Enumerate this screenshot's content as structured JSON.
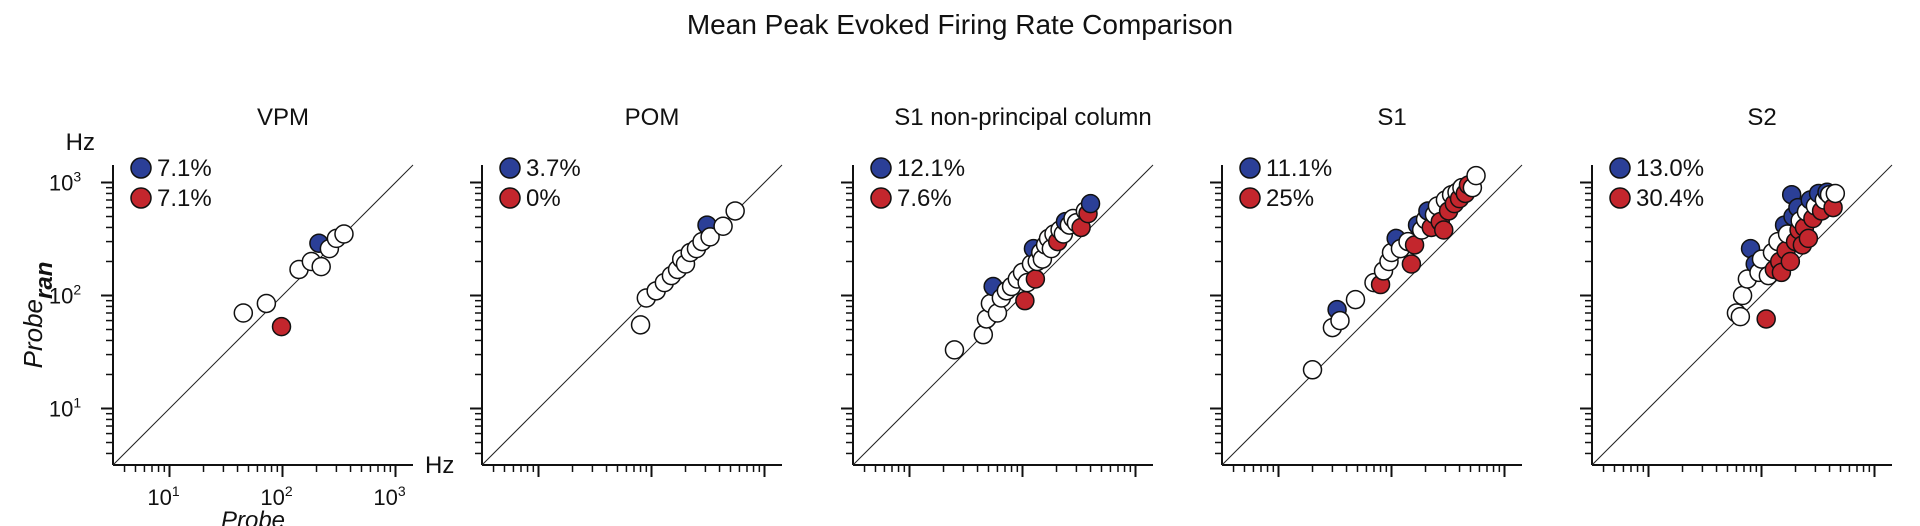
{
  "figure_title": "Mean Peak Evoked Firing Rate Comparison",
  "colors": {
    "blue": "#2b3f97",
    "red": "#c3262d",
    "white": "#ffffff",
    "stroke": "#111111"
  },
  "chart_data": [
    {
      "type": "scatter",
      "title": "VPM",
      "scale": "log",
      "xlabel": "Probe",
      "ylabel_main": "Probe",
      "ylabel_sub": "ran",
      "unit": "Hz",
      "xticks": [
        "10",
        "10",
        "10"
      ],
      "xtick_exp": [
        "1",
        "2",
        "3"
      ],
      "yticks": [
        "10",
        "10",
        "10"
      ],
      "ytick_exp": [
        "1",
        "2",
        "3"
      ],
      "legend": [
        {
          "color": "blue",
          "label": "7.1%"
        },
        {
          "color": "red",
          "label": "7.1%"
        }
      ],
      "points": [
        {
          "x": 45,
          "y": 70,
          "c": "white"
        },
        {
          "x": 72,
          "y": 85,
          "c": "white"
        },
        {
          "x": 98,
          "y": 53,
          "c": "red"
        },
        {
          "x": 140,
          "y": 170,
          "c": "white"
        },
        {
          "x": 180,
          "y": 200,
          "c": "white"
        },
        {
          "x": 210,
          "y": 290,
          "c": "blue"
        },
        {
          "x": 220,
          "y": 180,
          "c": "white"
        },
        {
          "x": 260,
          "y": 260,
          "c": "white"
        },
        {
          "x": 300,
          "y": 320,
          "c": "white"
        },
        {
          "x": 350,
          "y": 350,
          "c": "white"
        }
      ]
    },
    {
      "type": "scatter",
      "title": "POM",
      "scale": "log",
      "legend": [
        {
          "color": "blue",
          "label": "3.7%"
        },
        {
          "color": "red",
          "label": "0%"
        }
      ],
      "points": [
        {
          "x": 80,
          "y": 55,
          "c": "white"
        },
        {
          "x": 90,
          "y": 95,
          "c": "white"
        },
        {
          "x": 110,
          "y": 110,
          "c": "white"
        },
        {
          "x": 130,
          "y": 130,
          "c": "white"
        },
        {
          "x": 150,
          "y": 150,
          "c": "white"
        },
        {
          "x": 170,
          "y": 170,
          "c": "white"
        },
        {
          "x": 185,
          "y": 210,
          "c": "white"
        },
        {
          "x": 200,
          "y": 190,
          "c": "white"
        },
        {
          "x": 220,
          "y": 240,
          "c": "white"
        },
        {
          "x": 250,
          "y": 260,
          "c": "white"
        },
        {
          "x": 280,
          "y": 300,
          "c": "white"
        },
        {
          "x": 310,
          "y": 420,
          "c": "blue"
        },
        {
          "x": 330,
          "y": 330,
          "c": "white"
        },
        {
          "x": 430,
          "y": 410,
          "c": "white"
        },
        {
          "x": 550,
          "y": 560,
          "c": "white"
        }
      ]
    },
    {
      "type": "scatter",
      "title": "S1 non-principal column",
      "scale": "log",
      "legend": [
        {
          "color": "blue",
          "label": "12.1%"
        },
        {
          "color": "red",
          "label": "7.6%"
        }
      ],
      "points": [
        {
          "x": 25,
          "y": 33,
          "c": "white"
        },
        {
          "x": 45,
          "y": 45,
          "c": "white"
        },
        {
          "x": 48,
          "y": 62,
          "c": "white"
        },
        {
          "x": 52,
          "y": 85,
          "c": "white"
        },
        {
          "x": 55,
          "y": 120,
          "c": "blue"
        },
        {
          "x": 60,
          "y": 70,
          "c": "white"
        },
        {
          "x": 65,
          "y": 95,
          "c": "white"
        },
        {
          "x": 72,
          "y": 110,
          "c": "white"
        },
        {
          "x": 80,
          "y": 120,
          "c": "white"
        },
        {
          "x": 90,
          "y": 140,
          "c": "white"
        },
        {
          "x": 100,
          "y": 160,
          "c": "white"
        },
        {
          "x": 105,
          "y": 90,
          "c": "red"
        },
        {
          "x": 110,
          "y": 130,
          "c": "white"
        },
        {
          "x": 120,
          "y": 190,
          "c": "white"
        },
        {
          "x": 125,
          "y": 260,
          "c": "blue"
        },
        {
          "x": 130,
          "y": 140,
          "c": "red"
        },
        {
          "x": 135,
          "y": 200,
          "c": "white"
        },
        {
          "x": 145,
          "y": 240,
          "c": "white"
        },
        {
          "x": 150,
          "y": 210,
          "c": "white"
        },
        {
          "x": 160,
          "y": 280,
          "c": "white"
        },
        {
          "x": 170,
          "y": 320,
          "c": "white"
        },
        {
          "x": 180,
          "y": 260,
          "c": "white"
        },
        {
          "x": 190,
          "y": 350,
          "c": "white"
        },
        {
          "x": 205,
          "y": 300,
          "c": "red"
        },
        {
          "x": 215,
          "y": 380,
          "c": "white"
        },
        {
          "x": 230,
          "y": 350,
          "c": "white"
        },
        {
          "x": 240,
          "y": 450,
          "c": "blue"
        },
        {
          "x": 260,
          "y": 420,
          "c": "white"
        },
        {
          "x": 280,
          "y": 480,
          "c": "white"
        },
        {
          "x": 300,
          "y": 440,
          "c": "white"
        },
        {
          "x": 330,
          "y": 400,
          "c": "red"
        },
        {
          "x": 360,
          "y": 560,
          "c": "white"
        },
        {
          "x": 380,
          "y": 530,
          "c": "red"
        },
        {
          "x": 400,
          "y": 650,
          "c": "blue"
        }
      ]
    },
    {
      "type": "scatter",
      "title": "S1",
      "scale": "log",
      "legend": [
        {
          "color": "blue",
          "label": "11.1%"
        },
        {
          "color": "red",
          "label": "25%"
        }
      ],
      "points": [
        {
          "x": 20,
          "y": 22,
          "c": "white"
        },
        {
          "x": 30,
          "y": 52,
          "c": "white"
        },
        {
          "x": 33,
          "y": 75,
          "c": "blue"
        },
        {
          "x": 35,
          "y": 60,
          "c": "white"
        },
        {
          "x": 48,
          "y": 92,
          "c": "white"
        },
        {
          "x": 70,
          "y": 130,
          "c": "white"
        },
        {
          "x": 80,
          "y": 125,
          "c": "red"
        },
        {
          "x": 85,
          "y": 165,
          "c": "white"
        },
        {
          "x": 95,
          "y": 200,
          "c": "white"
        },
        {
          "x": 100,
          "y": 240,
          "c": "white"
        },
        {
          "x": 110,
          "y": 320,
          "c": "blue"
        },
        {
          "x": 120,
          "y": 260,
          "c": "white"
        },
        {
          "x": 140,
          "y": 300,
          "c": "white"
        },
        {
          "x": 150,
          "y": 190,
          "c": "red"
        },
        {
          "x": 160,
          "y": 280,
          "c": "red"
        },
        {
          "x": 170,
          "y": 420,
          "c": "blue"
        },
        {
          "x": 185,
          "y": 380,
          "c": "white"
        },
        {
          "x": 200,
          "y": 470,
          "c": "white"
        },
        {
          "x": 210,
          "y": 560,
          "c": "blue"
        },
        {
          "x": 225,
          "y": 400,
          "c": "red"
        },
        {
          "x": 240,
          "y": 520,
          "c": "white"
        },
        {
          "x": 255,
          "y": 620,
          "c": "white"
        },
        {
          "x": 270,
          "y": 450,
          "c": "red"
        },
        {
          "x": 290,
          "y": 380,
          "c": "red"
        },
        {
          "x": 300,
          "y": 700,
          "c": "white"
        },
        {
          "x": 320,
          "y": 560,
          "c": "red"
        },
        {
          "x": 340,
          "y": 780,
          "c": "white"
        },
        {
          "x": 360,
          "y": 650,
          "c": "red"
        },
        {
          "x": 380,
          "y": 820,
          "c": "white"
        },
        {
          "x": 400,
          "y": 720,
          "c": "red"
        },
        {
          "x": 420,
          "y": 900,
          "c": "white"
        },
        {
          "x": 450,
          "y": 800,
          "c": "red"
        },
        {
          "x": 480,
          "y": 950,
          "c": "red"
        },
        {
          "x": 520,
          "y": 900,
          "c": "white"
        },
        {
          "x": 560,
          "y": 1150,
          "c": "white"
        }
      ]
    },
    {
      "type": "scatter",
      "title": "S2",
      "scale": "log",
      "legend": [
        {
          "color": "blue",
          "label": "13.0%"
        },
        {
          "color": "red",
          "label": "30.4%"
        }
      ],
      "points": [
        {
          "x": 60,
          "y": 70,
          "c": "white"
        },
        {
          "x": 65,
          "y": 65,
          "c": "white"
        },
        {
          "x": 68,
          "y": 100,
          "c": "white"
        },
        {
          "x": 75,
          "y": 140,
          "c": "white"
        },
        {
          "x": 80,
          "y": 260,
          "c": "blue"
        },
        {
          "x": 88,
          "y": 190,
          "c": "blue"
        },
        {
          "x": 95,
          "y": 160,
          "c": "white"
        },
        {
          "x": 100,
          "y": 210,
          "c": "white"
        },
        {
          "x": 110,
          "y": 62,
          "c": "red"
        },
        {
          "x": 115,
          "y": 150,
          "c": "white"
        },
        {
          "x": 125,
          "y": 240,
          "c": "white"
        },
        {
          "x": 130,
          "y": 170,
          "c": "red"
        },
        {
          "x": 140,
          "y": 300,
          "c": "white"
        },
        {
          "x": 145,
          "y": 200,
          "c": "red"
        },
        {
          "x": 150,
          "y": 160,
          "c": "red"
        },
        {
          "x": 160,
          "y": 420,
          "c": "blue"
        },
        {
          "x": 165,
          "y": 250,
          "c": "red"
        },
        {
          "x": 170,
          "y": 350,
          "c": "white"
        },
        {
          "x": 180,
          "y": 200,
          "c": "red"
        },
        {
          "x": 185,
          "y": 780,
          "c": "blue"
        },
        {
          "x": 190,
          "y": 500,
          "c": "blue"
        },
        {
          "x": 200,
          "y": 300,
          "c": "red"
        },
        {
          "x": 210,
          "y": 600,
          "c": "blue"
        },
        {
          "x": 215,
          "y": 380,
          "c": "red"
        },
        {
          "x": 220,
          "y": 460,
          "c": "white"
        },
        {
          "x": 230,
          "y": 280,
          "c": "red"
        },
        {
          "x": 240,
          "y": 400,
          "c": "red"
        },
        {
          "x": 250,
          "y": 550,
          "c": "white"
        },
        {
          "x": 260,
          "y": 320,
          "c": "red"
        },
        {
          "x": 270,
          "y": 700,
          "c": "blue"
        },
        {
          "x": 285,
          "y": 480,
          "c": "red"
        },
        {
          "x": 300,
          "y": 620,
          "c": "white"
        },
        {
          "x": 320,
          "y": 800,
          "c": "blue"
        },
        {
          "x": 340,
          "y": 560,
          "c": "red"
        },
        {
          "x": 360,
          "y": 700,
          "c": "white"
        },
        {
          "x": 380,
          "y": 820,
          "c": "blue"
        },
        {
          "x": 400,
          "y": 780,
          "c": "white"
        },
        {
          "x": 430,
          "y": 600,
          "c": "red"
        },
        {
          "x": 450,
          "y": 800,
          "c": "white"
        }
      ]
    }
  ]
}
